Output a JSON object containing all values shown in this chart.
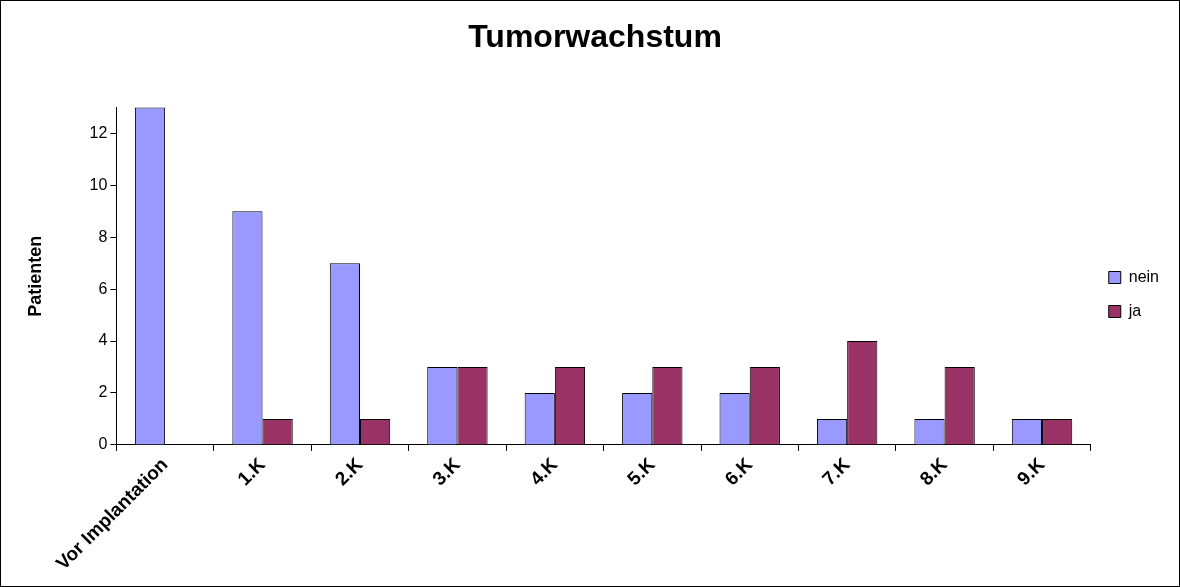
{
  "chart_data": {
    "type": "bar",
    "title": "Tumorwachstum",
    "ylabel": "Patienten",
    "categories": [
      "Vor Implantation",
      "1.K",
      "2.K",
      "3.K",
      "4.K",
      "5.K",
      "6.K",
      "7.K",
      "8.K",
      "9.K"
    ],
    "series": [
      {
        "name": "nein",
        "color": "#9999ff",
        "values": [
          13,
          9,
          7,
          3,
          2,
          2,
          2,
          1,
          1,
          1
        ]
      },
      {
        "name": "ja",
        "color": "#993366",
        "values": [
          0,
          1,
          1,
          3,
          3,
          3,
          3,
          4,
          3,
          1
        ]
      }
    ],
    "ylim": [
      0,
      13
    ],
    "yticks": [
      0,
      2,
      4,
      6,
      8,
      10,
      12
    ],
    "grid": false,
    "legend": "right"
  }
}
